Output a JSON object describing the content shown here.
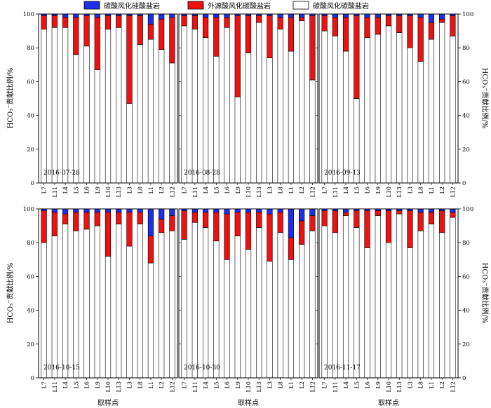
{
  "chart_data": {
    "type": "bar",
    "stacked": true,
    "ylim": [
      0,
      100
    ],
    "yticks": [
      0,
      20,
      40,
      60,
      80,
      100
    ],
    "ylabel": "HCO₃⁻贡献比例/%",
    "xlabel": "取样点",
    "legend": {
      "placement": "top",
      "entries": [
        {
          "name": "碳酸风化硅酸盐岩",
          "color": "#1f2ee8"
        },
        {
          "name": "外源酸风化碳酸盐岩",
          "color": "#ee1111"
        },
        {
          "name": "碳酸风化碳酸盐岩",
          "color": "#ffffff"
        }
      ]
    },
    "layout_grid": "2 rows x 3 columns",
    "panels": [
      {
        "date": "2016-07-28",
        "categories": [
          "L7",
          "L11",
          "L4",
          "L5",
          "L6",
          "L9",
          "L10",
          "L13",
          "L3",
          "L8",
          "L1",
          "L2",
          "L12"
        ],
        "series": [
          {
            "name": "碳酸风化碳酸盐岩",
            "values": [
              91,
              92,
              92,
              76,
              81,
              67,
              91,
              92,
              47,
              82,
              85,
              79,
              71
            ]
          },
          {
            "name": "外源酸风化碳酸盐岩",
            "values": [
              8,
              7,
              6,
              22,
              18,
              31,
              8,
              7,
              52,
              17,
              9,
              18,
              27
            ]
          },
          {
            "name": "碳酸风化硅酸盐岩",
            "values": [
              1,
              1,
              2,
              2,
              1,
              2,
              1,
              1,
              1,
              1,
              6,
              3,
              2
            ]
          }
        ]
      },
      {
        "date": "2016-08-28",
        "categories": [
          "L7",
          "L11",
          "L4",
          "L5",
          "L6",
          "L9",
          "L10",
          "L13",
          "L3",
          "L8",
          "L1",
          "L2",
          "L12"
        ],
        "series": [
          {
            "name": "碳酸风化碳酸盐岩",
            "values": [
              93,
              91,
              86,
              75,
              92,
              51,
              77,
              95,
              74,
              91,
              78,
              96,
              61
            ]
          },
          {
            "name": "外源酸风化碳酸盐岩",
            "values": [
              6,
              8,
              12,
              23,
              6,
              48,
              22,
              4,
              25,
              7,
              20,
              2,
              38
            ]
          },
          {
            "name": "碳酸风化硅酸盐岩",
            "values": [
              1,
              1,
              2,
              2,
              2,
              1,
              1,
              1,
              1,
              2,
              2,
              2,
              1
            ]
          }
        ]
      },
      {
        "date": "2016-09-13",
        "categories": [
          "L7",
          "L11",
          "L4",
          "L5",
          "L6",
          "L9",
          "L10",
          "L13",
          "L3",
          "L8",
          "L1",
          "L2",
          "L12"
        ],
        "series": [
          {
            "name": "碳酸风化碳酸盐岩",
            "values": [
              90,
              87,
              78,
              50,
              86,
              88,
              93,
              89,
              80,
              72,
              85,
              95,
              87
            ]
          },
          {
            "name": "外源酸风化碳酸盐岩",
            "values": [
              9,
              11,
              20,
              49,
              12,
              10,
              6,
              10,
              19,
              26,
              10,
              2,
              12
            ]
          },
          {
            "name": "碳酸风化硅酸盐岩",
            "values": [
              1,
              2,
              2,
              1,
              2,
              2,
              1,
              1,
              1,
              2,
              5,
              3,
              1
            ]
          }
        ]
      },
      {
        "date": "2016-10-15",
        "categories": [
          "L7",
          "L11",
          "L4",
          "L5",
          "L6",
          "L9",
          "L10",
          "L13",
          "L3",
          "L8",
          "L1",
          "L2",
          "L12"
        ],
        "series": [
          {
            "name": "碳酸风化碳酸盐岩",
            "values": [
              80,
              84,
              91,
              87,
              88,
              90,
              72,
              91,
              78,
              91,
              68,
              86,
              87
            ]
          },
          {
            "name": "外源酸风化碳酸盐岩",
            "values": [
              19,
              14,
              6,
              11,
              10,
              8,
              26,
              7,
              20,
              7,
              16,
              8,
              9
            ]
          },
          {
            "name": "碳酸风化硅酸盐岩",
            "values": [
              1,
              2,
              3,
              2,
              2,
              2,
              2,
              2,
              2,
              2,
              16,
              6,
              4
            ]
          }
        ]
      },
      {
        "date": "2016-10-30",
        "categories": [
          "L7",
          "L11",
          "L4",
          "L5",
          "L6",
          "L9",
          "L10",
          "L13",
          "L3",
          "L8",
          "L1",
          "L2",
          "L12"
        ],
        "series": [
          {
            "name": "碳酸风化碳酸盐岩",
            "values": [
              82,
              92,
              89,
              81,
              70,
              84,
              76,
              89,
              69,
              86,
              70,
              79,
              87
            ]
          },
          {
            "name": "外源酸风化碳酸盐岩",
            "values": [
              17,
              6,
              9,
              17,
              27,
              14,
              22,
              9,
              28,
              12,
              13,
              14,
              9
            ]
          },
          {
            "name": "碳酸风化硅酸盐岩",
            "values": [
              1,
              2,
              2,
              2,
              3,
              2,
              2,
              2,
              3,
              2,
              17,
              7,
              4
            ]
          }
        ]
      },
      {
        "date": "2016-11-17",
        "categories": [
          "L7",
          "L11",
          "L4",
          "L5",
          "L6",
          "L9",
          "L10",
          "L13",
          "L3",
          "L8",
          "L1",
          "L2",
          "L12"
        ],
        "series": [
          {
            "name": "碳酸风化碳酸盐岩",
            "values": [
              90,
              86,
              96,
              89,
              77,
              96,
              80,
              97,
              77,
              87,
              91,
              86,
              95
            ]
          },
          {
            "name": "外源酸风化碳酸盐岩",
            "values": [
              9,
              13,
              2,
              10,
              22,
              3,
              19,
              2,
              22,
              11,
              7,
              13,
              3
            ]
          },
          {
            "name": "碳酸风化硅酸盐岩",
            "values": [
              1,
              1,
              2,
              1,
              1,
              1,
              1,
              1,
              1,
              2,
              2,
              1,
              2
            ]
          }
        ]
      }
    ]
  }
}
